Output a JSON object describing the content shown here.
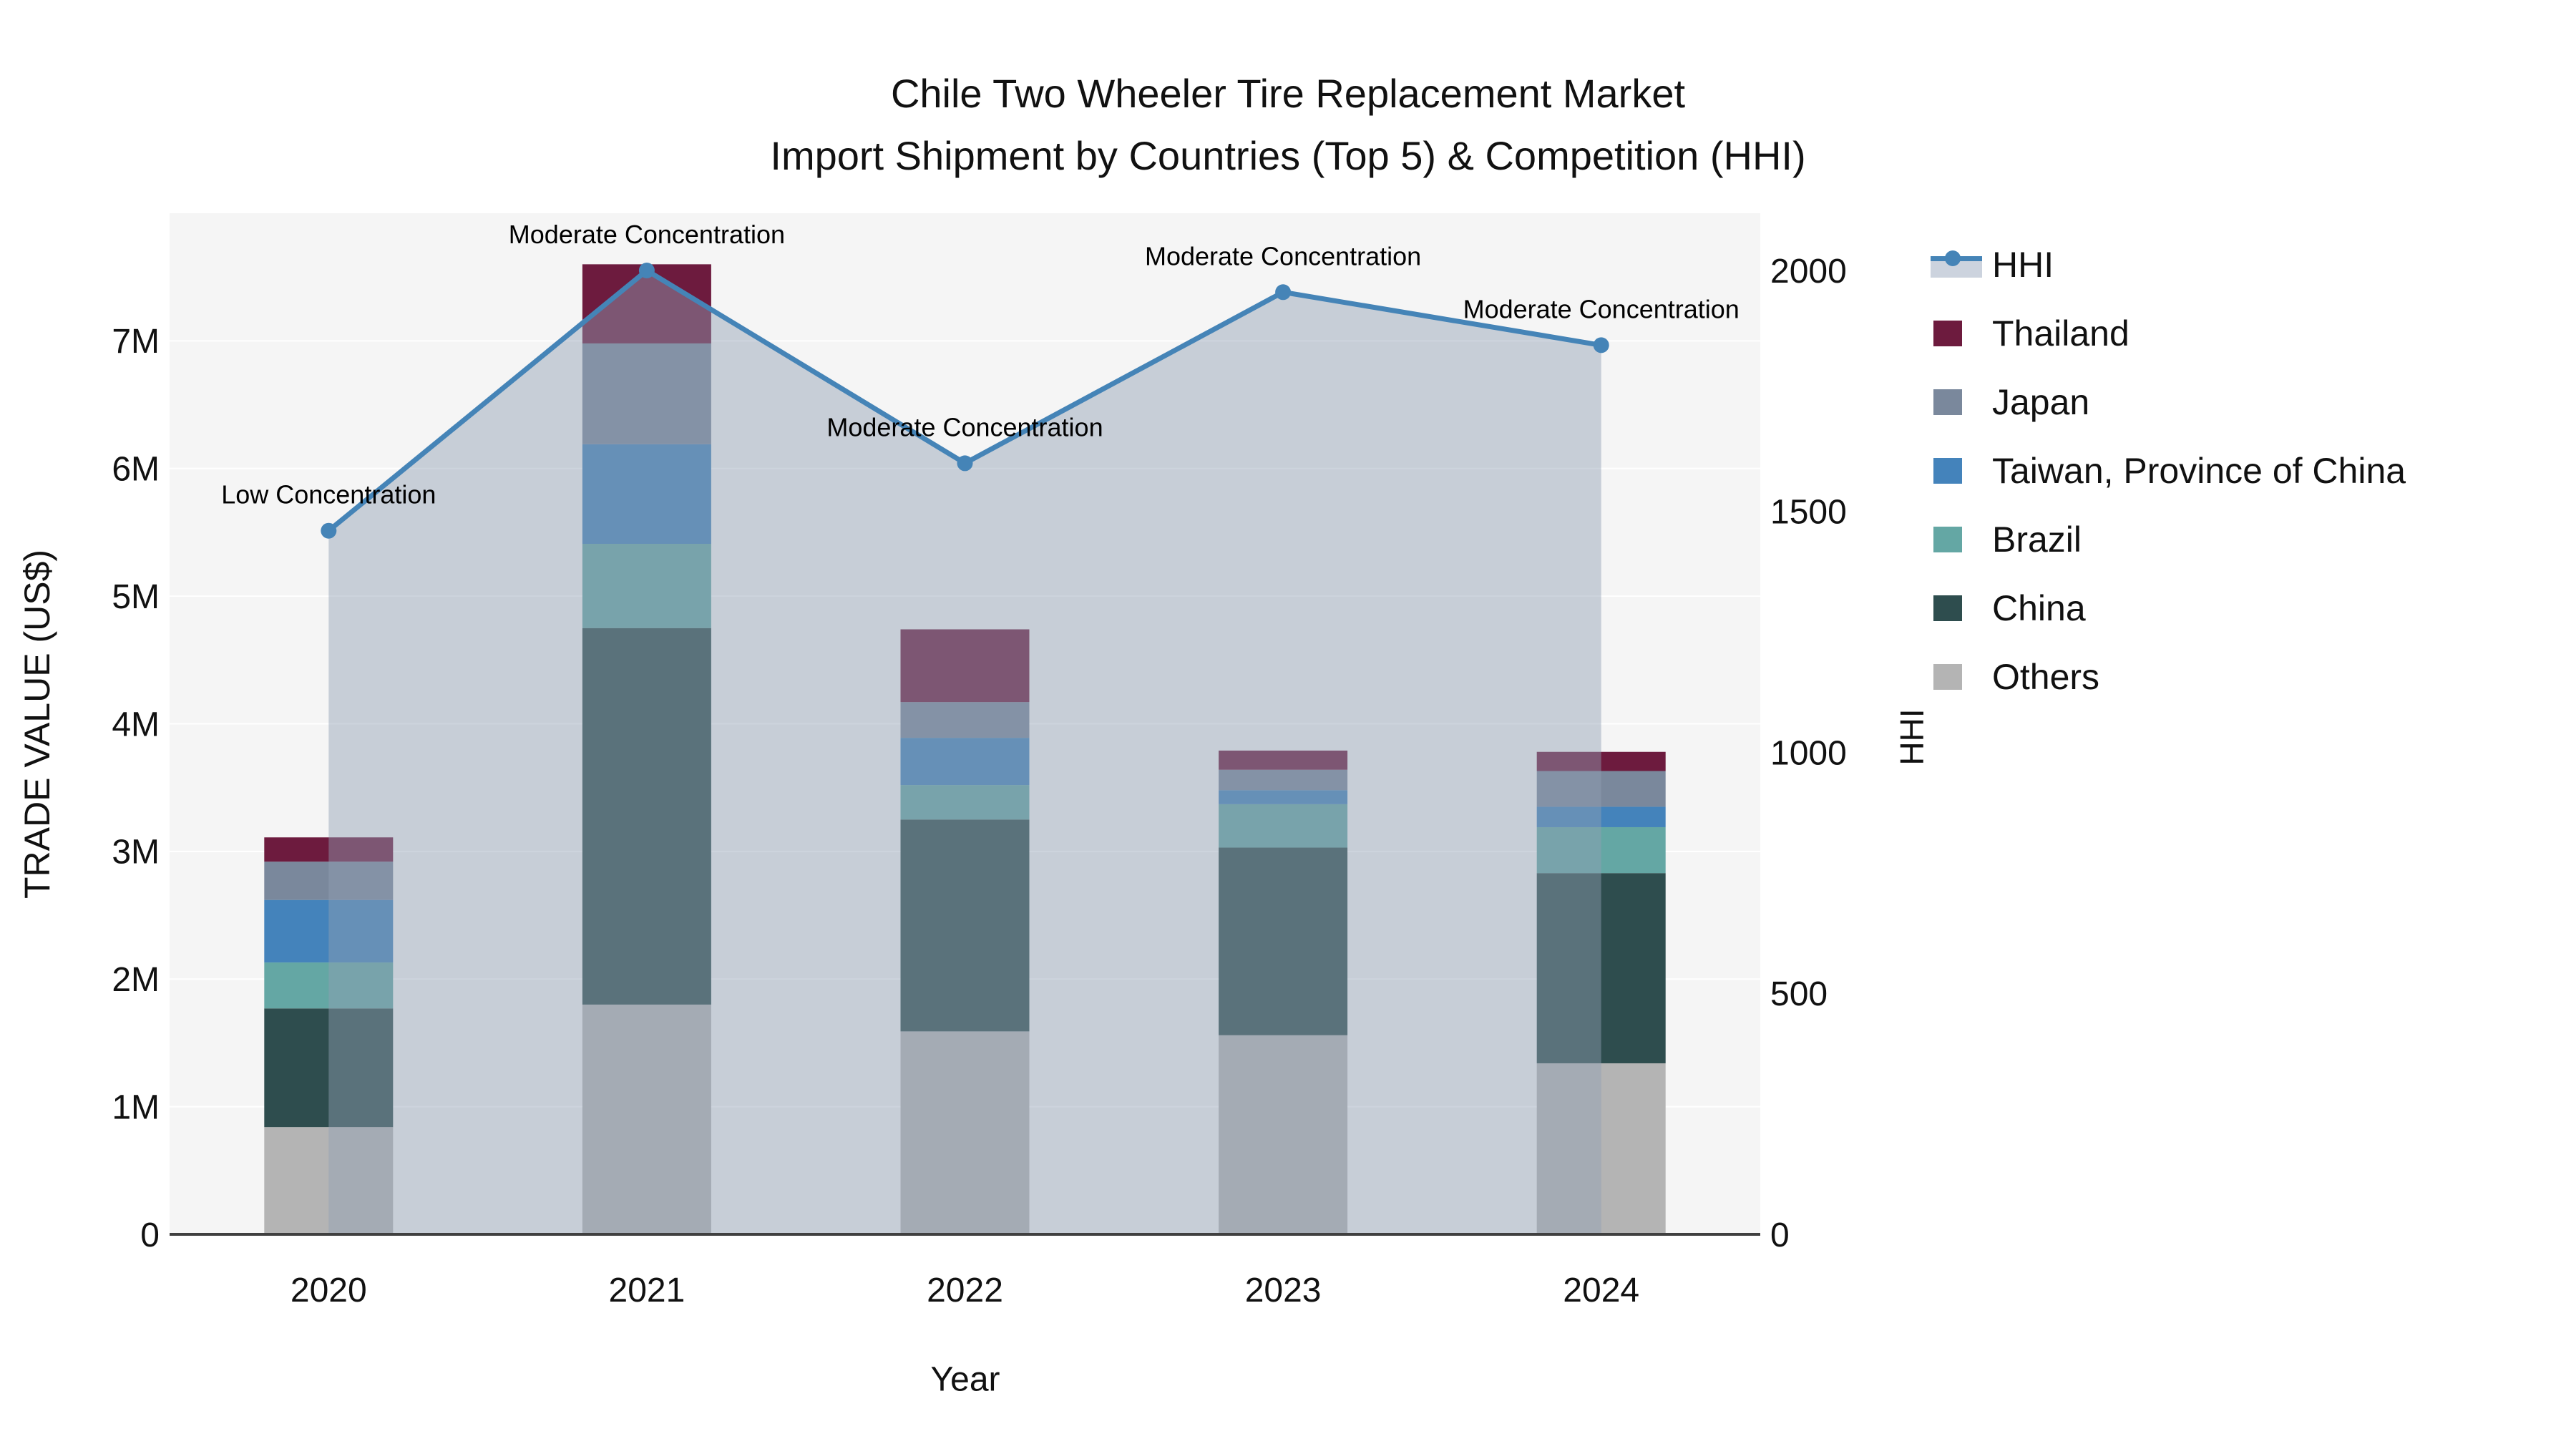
{
  "title": {
    "line1": "Chile Two Wheeler Tire Replacement Market",
    "line2": "Import Shipment by Countries (Top 5) & Competition (HHI)"
  },
  "axes": {
    "x": {
      "title": "Year",
      "categories": [
        "2020",
        "2021",
        "2022",
        "2023",
        "2024"
      ]
    },
    "y_left": {
      "title": "TRADE VALUE (US$)",
      "tick_labels": [
        "0",
        "1M",
        "2M",
        "3M",
        "4M",
        "5M",
        "6M",
        "7M"
      ],
      "tick_values_usd": [
        0,
        1000000,
        2000000,
        3000000,
        4000000,
        5000000,
        6000000,
        7000000
      ],
      "range_usd": [
        0,
        8000000
      ],
      "grid": "on"
    },
    "y_right": {
      "title": "HHI",
      "tick_labels": [
        "0",
        "500",
        "1000",
        "1500",
        "2000"
      ],
      "tick_values": [
        0,
        500,
        1000,
        1500,
        2000
      ],
      "range": [
        0,
        2120
      ],
      "grid": "off"
    }
  },
  "legend": {
    "position": "right-top",
    "items": [
      {
        "label": "HHI",
        "type": "line",
        "color": "#4584B7"
      },
      {
        "label": "Thailand",
        "type": "swatch",
        "color": "#6D1B3E"
      },
      {
        "label": "Japan",
        "type": "swatch",
        "color": "#7A889C"
      },
      {
        "label": "Taiwan, Province of China",
        "type": "swatch",
        "color": "#4483BB"
      },
      {
        "label": "Brazil",
        "type": "swatch",
        "color": "#64A7A4"
      },
      {
        "label": "China",
        "type": "swatch",
        "color": "#2E4D4E"
      },
      {
        "label": "Others",
        "type": "swatch",
        "color": "#B4B4B4"
      }
    ]
  },
  "chart_data": {
    "type": "bar+line",
    "subtype": "stacked-bar with secondary-axis line",
    "categories": [
      "2020",
      "2021",
      "2022",
      "2023",
      "2024"
    ],
    "bar_series_bottom_to_top": [
      {
        "name": "Others",
        "color": "#B4B4B4",
        "values_usd": [
          840000,
          1800000,
          1590000,
          1560000,
          1340000
        ]
      },
      {
        "name": "China",
        "color": "#2E4D4E",
        "values_usd": [
          930000,
          2950000,
          1660000,
          1470000,
          1490000
        ]
      },
      {
        "name": "Brazil",
        "color": "#64A7A4",
        "values_usd": [
          360000,
          660000,
          270000,
          340000,
          360000
        ]
      },
      {
        "name": "Taiwan, Province of China",
        "color": "#4483BB",
        "values_usd": [
          490000,
          780000,
          370000,
          110000,
          160000
        ]
      },
      {
        "name": "Japan",
        "color": "#7A889C",
        "values_usd": [
          300000,
          790000,
          280000,
          160000,
          280000
        ]
      },
      {
        "name": "Thailand",
        "color": "#6D1B3E",
        "values_usd": [
          190000,
          620000,
          570000,
          150000,
          150000
        ]
      }
    ],
    "totals_usd": [
      3110000,
      7600000,
      4740000,
      3790000,
      3780000
    ],
    "line_series": {
      "name": "HHI",
      "axis": "right",
      "color": "#4584B7",
      "fill_color": "rgba(145,160,180,0.45)",
      "values": [
        1460,
        2000,
        1600,
        1955,
        1845
      ]
    },
    "annotations": [
      {
        "text": "Low Concentration",
        "category_index": 0
      },
      {
        "text": "Moderate Concentration",
        "category_index": 1
      },
      {
        "text": "Moderate Concentration",
        "category_index": 2
      },
      {
        "text": "Moderate Concentration",
        "category_index": 3
      },
      {
        "text": "Moderate Concentration",
        "category_index": 4
      }
    ]
  },
  "colors": {
    "plot_background": "#f5f5f5",
    "page_background": "#ffffff",
    "gridline": "#ffffff",
    "axis_line": "#404040",
    "text": "#111111",
    "annotation_text": "#000000",
    "hhi_line": "#4584B7",
    "hhi_fill": "rgba(145,160,180,0.45)",
    "legend_band": "#CCD3DE"
  }
}
